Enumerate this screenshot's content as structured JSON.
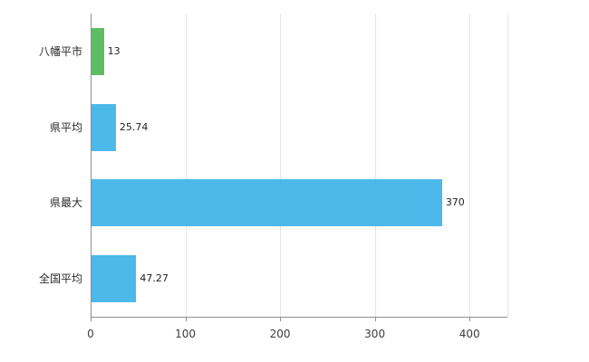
{
  "chart_data": {
    "type": "bar",
    "orientation": "horizontal",
    "title": "",
    "xlabel": "",
    "ylabel": "",
    "categories": [
      "八幡平市",
      "県平均",
      "県最大",
      "全国平均"
    ],
    "values": [
      13,
      25.74,
      370,
      47.27
    ],
    "value_labels": [
      "13",
      "25.74",
      "370",
      "47.27"
    ],
    "bar_colors": [
      "#5dbd62",
      "#4db8ea",
      "#4db8ea",
      "#4db8ea"
    ],
    "x_ticks": [
      0,
      100,
      200,
      300,
      400
    ],
    "x_tick_labels": [
      "0",
      "100",
      "200",
      "300",
      "400"
    ],
    "xlim": [
      0,
      440
    ],
    "grid": true,
    "legend": "none",
    "colors": {
      "grid": "#e4e4e4",
      "axis": "#8f8f8f",
      "background": "#ffffff"
    }
  }
}
